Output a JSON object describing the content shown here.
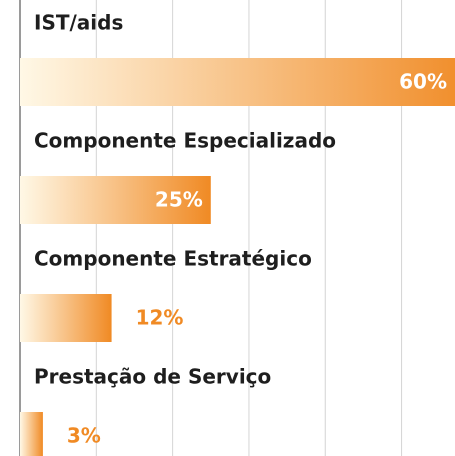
{
  "chart_data": {
    "type": "bar",
    "orientation": "horizontal",
    "categories": [
      "IST/aids",
      "Componente Especializado",
      "Componente Estratégico",
      "Prestação de Serviço"
    ],
    "values": [
      60,
      25,
      12,
      3
    ],
    "value_labels": [
      "60%",
      "25%",
      "12%",
      "3%"
    ],
    "color": "#f08a24",
    "xlim": [
      0,
      57
    ],
    "xticks": [
      10,
      20,
      30,
      40,
      50
    ],
    "grid": true
  }
}
